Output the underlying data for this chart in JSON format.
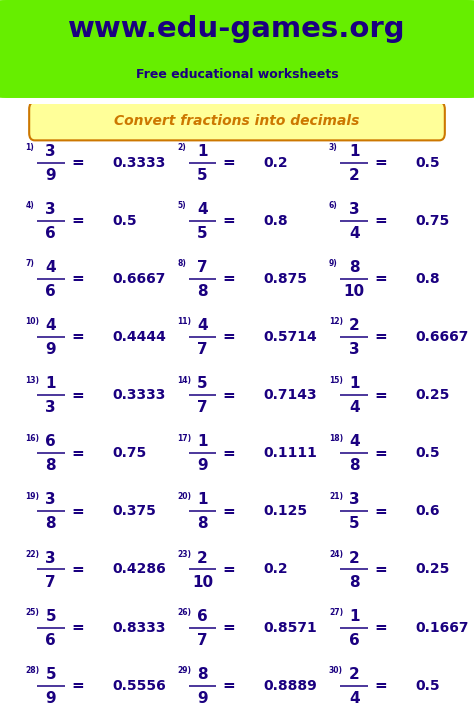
{
  "title_url": "www.edu-games.org",
  "title_sub": "Free educational worksheets",
  "worksheet_title": "Convert fractions into decimals",
  "header_bg": "#66ee00",
  "title_url_color": "#1a0080",
  "title_sub_color": "#1a0080",
  "worksheet_title_color": "#cc7700",
  "worksheet_title_bg": "#ffff99",
  "border_color": "#1a0080",
  "fraction_color": "#1a0080",
  "fig_width": 4.74,
  "fig_height": 7.1,
  "problems": [
    {
      "num": 1,
      "numer": "3",
      "denom": "9",
      "decimal": "0.3333"
    },
    {
      "num": 2,
      "numer": "1",
      "denom": "5",
      "decimal": "0.2"
    },
    {
      "num": 3,
      "numer": "1",
      "denom": "2",
      "decimal": "0.5"
    },
    {
      "num": 4,
      "numer": "3",
      "denom": "6",
      "decimal": "0.5"
    },
    {
      "num": 5,
      "numer": "4",
      "denom": "5",
      "decimal": "0.8"
    },
    {
      "num": 6,
      "numer": "3",
      "denom": "4",
      "decimal": "0.75"
    },
    {
      "num": 7,
      "numer": "4",
      "denom": "6",
      "decimal": "0.6667"
    },
    {
      "num": 8,
      "numer": "7",
      "denom": "8",
      "decimal": "0.875"
    },
    {
      "num": 9,
      "numer": "8",
      "denom": "10",
      "decimal": "0.8"
    },
    {
      "num": 10,
      "numer": "4",
      "denom": "9",
      "decimal": "0.4444"
    },
    {
      "num": 11,
      "numer": "4",
      "denom": "7",
      "decimal": "0.5714"
    },
    {
      "num": 12,
      "numer": "2",
      "denom": "3",
      "decimal": "0.6667"
    },
    {
      "num": 13,
      "numer": "1",
      "denom": "3",
      "decimal": "0.3333"
    },
    {
      "num": 14,
      "numer": "5",
      "denom": "7",
      "decimal": "0.7143"
    },
    {
      "num": 15,
      "numer": "1",
      "denom": "4",
      "decimal": "0.25"
    },
    {
      "num": 16,
      "numer": "6",
      "denom": "8",
      "decimal": "0.75"
    },
    {
      "num": 17,
      "numer": "1",
      "denom": "9",
      "decimal": "0.1111"
    },
    {
      "num": 18,
      "numer": "4",
      "denom": "8",
      "decimal": "0.5"
    },
    {
      "num": 19,
      "numer": "3",
      "denom": "8",
      "decimal": "0.375"
    },
    {
      "num": 20,
      "numer": "1",
      "denom": "8",
      "decimal": "0.125"
    },
    {
      "num": 21,
      "numer": "3",
      "denom": "5",
      "decimal": "0.6"
    },
    {
      "num": 22,
      "numer": "3",
      "denom": "7",
      "decimal": "0.4286"
    },
    {
      "num": 23,
      "numer": "2",
      "denom": "10",
      "decimal": "0.2"
    },
    {
      "num": 24,
      "numer": "2",
      "denom": "8",
      "decimal": "0.25"
    },
    {
      "num": 25,
      "numer": "5",
      "denom": "6",
      "decimal": "0.8333"
    },
    {
      "num": 26,
      "numer": "6",
      "denom": "7",
      "decimal": "0.8571"
    },
    {
      "num": 27,
      "numer": "1",
      "denom": "6",
      "decimal": "0.1667"
    },
    {
      "num": 28,
      "numer": "5",
      "denom": "9",
      "decimal": "0.5556"
    },
    {
      "num": 29,
      "numer": "8",
      "denom": "9",
      "decimal": "0.8889"
    },
    {
      "num": 30,
      "numer": "2",
      "denom": "4",
      "decimal": "0.5"
    }
  ]
}
